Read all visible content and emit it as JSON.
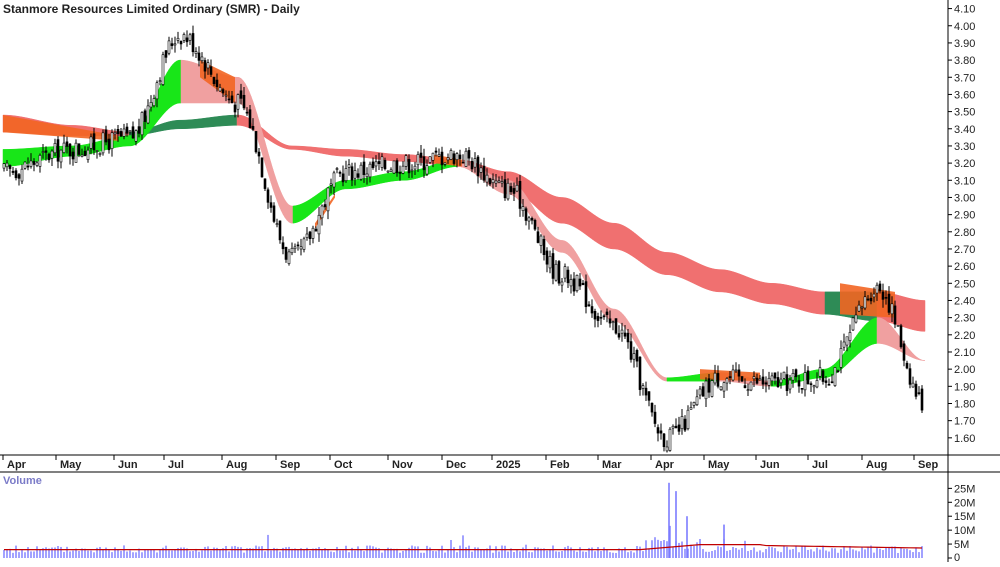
{
  "title": "Stanmore Resources Limited Ordinary (SMR) - Daily",
  "volume_label": "Volume",
  "colors": {
    "candle": "#000000",
    "up_fill": "#ffffff",
    "orange": "#f26522",
    "green_bright": "#19e619",
    "green_dark": "#2e8b57",
    "pink": "#f0a0a0",
    "red_band": "#f07070",
    "volume_bar": "#7b7bff",
    "volume_ma": "#c00000",
    "grid": "#000000"
  },
  "chart_data": [
    {
      "type": "candlestick",
      "title": "Stanmore Resources Limited Ordinary (SMR) - Daily",
      "ylim": [
        1.5,
        4.15
      ],
      "y_ticks": [
        "4.10",
        "4.00",
        "3.90",
        "3.80",
        "3.70",
        "3.60",
        "3.50",
        "3.40",
        "3.30",
        "3.20",
        "3.10",
        "3.00",
        "2.90",
        "2.80",
        "2.70",
        "2.60",
        "2.50",
        "2.40",
        "2.30",
        "2.20",
        "2.10",
        "2.00",
        "1.90",
        "1.80",
        "1.70",
        "1.60"
      ],
      "x_labels": [
        "Apr",
        "May",
        "Jun",
        "Jul",
        "Aug",
        "Sep",
        "Oct",
        "Nov",
        "Dec",
        "2025",
        "Feb",
        "Mar",
        "Apr",
        "May",
        "Jun",
        "Jul",
        "Aug",
        "Sep"
      ],
      "close_path": [
        [
          "Apr",
          3.15
        ],
        [
          "May",
          3.28
        ],
        [
          "Jun",
          3.35
        ],
        [
          "Jul",
          3.95
        ],
        [
          "Aug",
          3.55
        ],
        [
          "Sep",
          2.65
        ],
        [
          "Oct",
          3.15
        ],
        [
          "Nov",
          3.2
        ],
        [
          "Dec",
          3.25
        ],
        [
          "2025",
          3.05
        ],
        [
          "Feb",
          2.55
        ],
        [
          "Mar",
          2.25
        ],
        [
          "Apr",
          1.6
        ],
        [
          "May",
          1.95
        ],
        [
          "Jun",
          1.92
        ],
        [
          "Jul",
          1.95
        ],
        [
          "Aug",
          2.48
        ],
        [
          "Sep",
          1.8
        ]
      ],
      "short_ma_band": {
        "upper": [
          3.28,
          3.3,
          3.36,
          3.8,
          3.7,
          2.95,
          3.1,
          3.15,
          3.22,
          3.1,
          2.75,
          2.35,
          1.95,
          1.98,
          1.93,
          2.0,
          2.3,
          2.05
        ],
        "lower": [
          3.18,
          3.24,
          3.3,
          3.55,
          3.55,
          2.85,
          3.05,
          3.1,
          3.18,
          3.02,
          2.68,
          2.28,
          1.93,
          1.93,
          1.9,
          1.95,
          2.15,
          2.05
        ],
        "up_color": "green_bright",
        "down_color": "pink"
      },
      "long_ma_band": {
        "upper": [
          3.48,
          3.42,
          3.38,
          3.45,
          3.48,
          3.3,
          3.28,
          3.25,
          3.22,
          3.15,
          3.0,
          2.85,
          2.68,
          2.58,
          2.5,
          2.45,
          2.45,
          2.4
        ],
        "lower": [
          3.38,
          3.36,
          3.36,
          3.4,
          3.42,
          3.28,
          3.24,
          3.21,
          3.18,
          3.05,
          2.85,
          2.7,
          2.55,
          2.45,
          2.38,
          2.32,
          2.28,
          2.22
        ],
        "up_color": "green_dark",
        "down_color": "red_band"
      }
    },
    {
      "type": "bar",
      "title": "Volume",
      "ylim": [
        0,
        28000000
      ],
      "y_ticks": [
        "25M",
        "20M",
        "15M",
        "10M",
        "5M",
        "0"
      ],
      "notable_spikes": [
        [
          "Apr",
          27000000
        ],
        [
          "Apr",
          24000000
        ],
        [
          "Apr",
          15000000
        ],
        [
          "May",
          12000000
        ]
      ],
      "baseline_average": 3000000
    }
  ]
}
